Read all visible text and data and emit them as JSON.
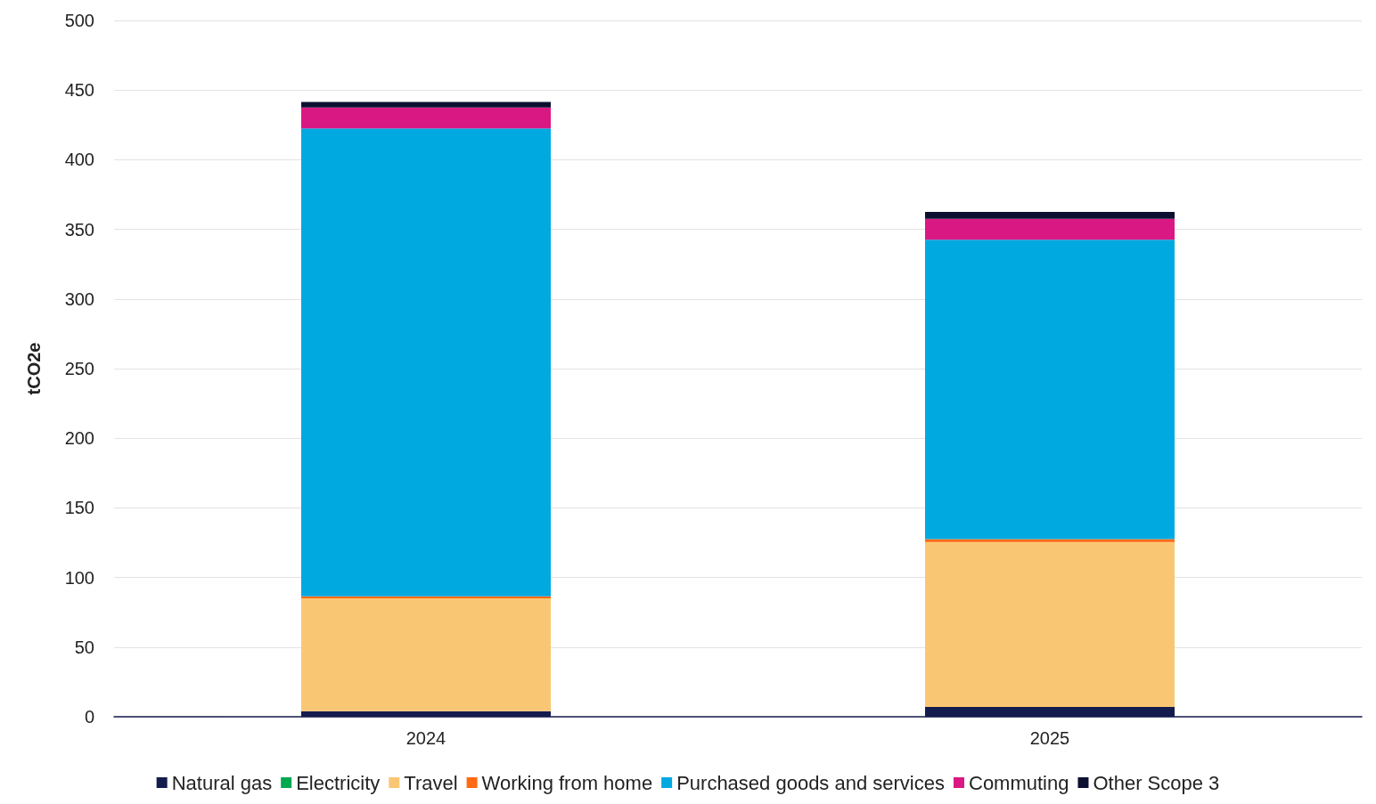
{
  "chart_data": {
    "type": "bar",
    "stacked": true,
    "ylabel": "tCO2e",
    "categories": [
      "2024",
      "2025"
    ],
    "series": [
      {
        "name": "Natural gas",
        "color": "#141b4d",
        "values": [
          4,
          7
        ]
      },
      {
        "name": "Electricity",
        "color": "#00a94f",
        "values": [
          0,
          0
        ]
      },
      {
        "name": "Travel",
        "color": "#f9c773",
        "values": [
          81,
          118.5
        ]
      },
      {
        "name": "Working from home",
        "color": "#ff6a13",
        "values": [
          1.5,
          2
        ]
      },
      {
        "name": "Purchased goods and services",
        "color": "#00a9e0",
        "values": [
          336,
          215
        ]
      },
      {
        "name": "Commuting",
        "color": "#da1884",
        "values": [
          15,
          15
        ]
      },
      {
        "name": "Other Scope 3",
        "color": "#0c1030",
        "values": [
          4,
          5
        ]
      }
    ],
    "ylim": [
      0,
      500
    ],
    "yticks": [
      0,
      50,
      100,
      150,
      200,
      250,
      300,
      350,
      400,
      450,
      500
    ],
    "grid": "y",
    "legend": "bottom"
  }
}
